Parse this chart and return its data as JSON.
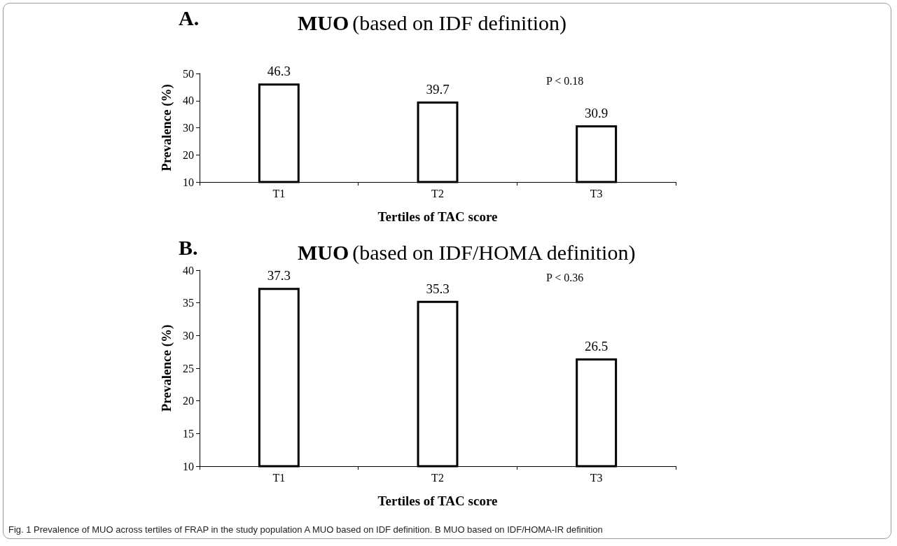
{
  "chart_data": [
    {
      "type": "bar",
      "title": "MUO (based on IDF definition)",
      "xlabel": "Tertiles of TAC score",
      "ylabel": "Prevalence (%)",
      "categories": [
        "T1",
        "T2",
        "T3"
      ],
      "values": [
        46.3,
        39.7,
        30.9
      ],
      "color": "#000000",
      "ylim": [
        10,
        50
      ],
      "yticks": [
        10,
        20,
        30,
        40,
        50
      ],
      "data_labels": true,
      "grid": false,
      "annotations": [
        "A.",
        "P < 0.18"
      ]
    },
    {
      "type": "bar",
      "title": "MUO (based on IDF/HOMA definition)",
      "xlabel": "Tertiles of TAC score",
      "ylabel": "Prevalence (%)",
      "categories": [
        "T1",
        "T2",
        "T3"
      ],
      "values": [
        37.3,
        35.3,
        26.5
      ],
      "color": "#000000",
      "ylim": [
        10,
        40
      ],
      "yticks": [
        10,
        15,
        20,
        25,
        30,
        35,
        40
      ],
      "data_labels": true,
      "grid": false,
      "annotations": [
        "B.",
        "P < 0.36",
        "Fig. 1 Prevalence of MUO across tertiles of FRAP in the study population A MUO based on IDF definition. B MUO based on IDF/HOMA-IR definition"
      ]
    }
  ]
}
